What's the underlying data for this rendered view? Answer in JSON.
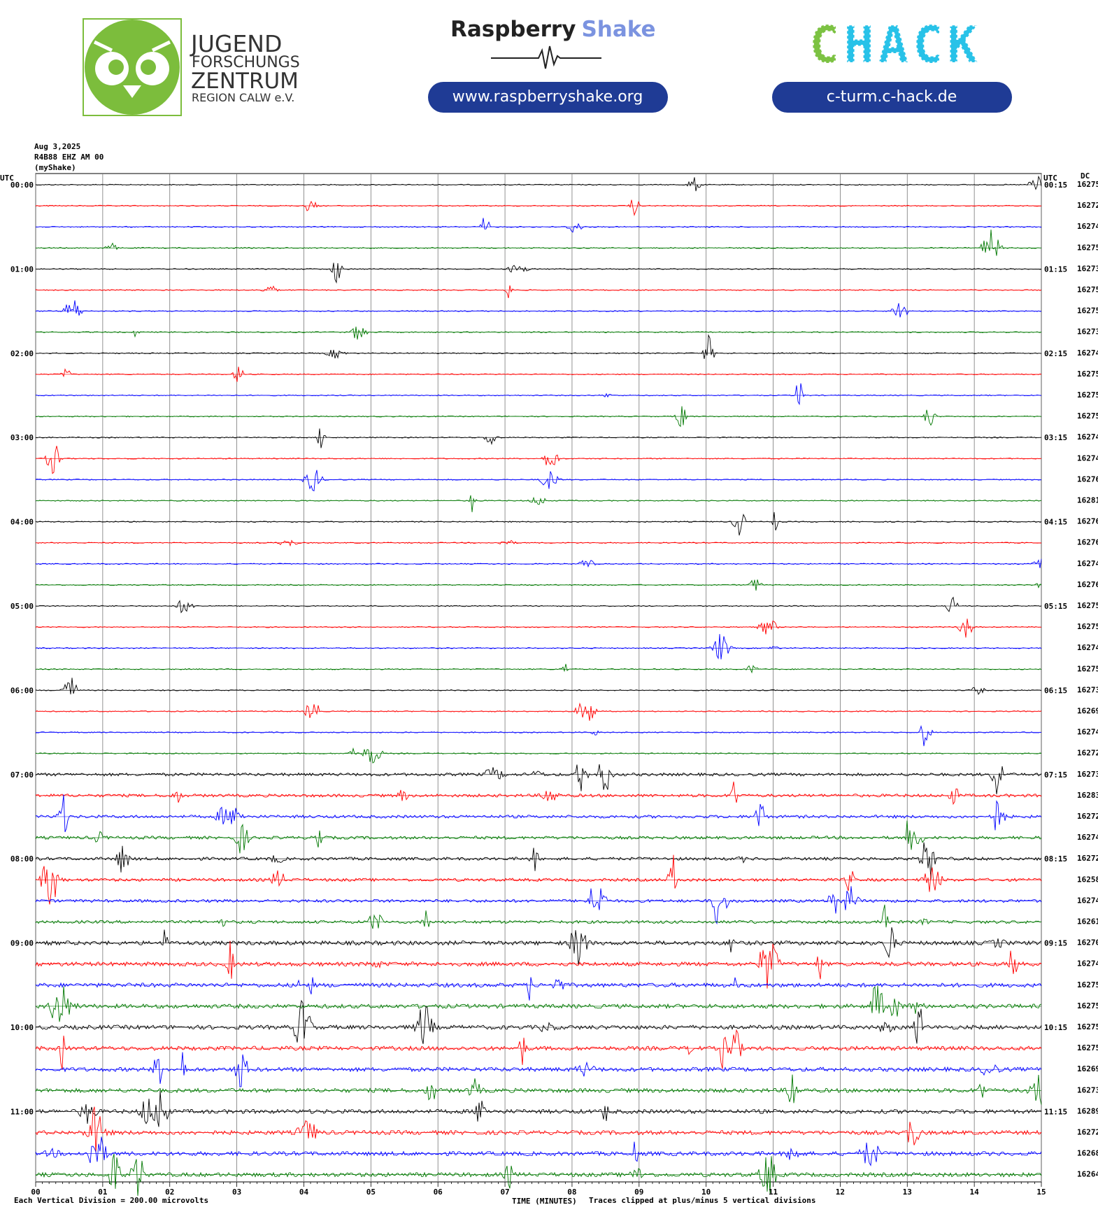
{
  "header": {
    "logo_lines": [
      "JUGEND",
      "FORSCHUNGS",
      "ZENTRUM",
      "REGION CALW e.V."
    ],
    "rs_brand": [
      "Raspberry",
      "Shake"
    ],
    "rs_url": "www.raspberryshake.org",
    "chack_logo": [
      "C",
      "HACK"
    ],
    "chack_url": "c-turm.c-hack.de"
  },
  "plot": {
    "date": "Aug 3,2025",
    "station": "R4B88 EHZ AM 00",
    "source": "(myShake)",
    "left_title": "UTC",
    "right_title": "UTC",
    "dc_title": "DC",
    "left_labels": [
      "00:00",
      "01:00",
      "02:00",
      "03:00",
      "04:00",
      "05:00",
      "06:00",
      "07:00",
      "08:00",
      "09:00",
      "10:00",
      "11:00"
    ],
    "right_labels": [
      "00:15",
      "01:15",
      "02:15",
      "03:15",
      "04:15",
      "05:15",
      "06:15",
      "07:15",
      "08:15",
      "09:15",
      "10:15",
      "11:15"
    ],
    "dc": [
      16275,
      16272,
      16274,
      16275,
      16273,
      16275,
      16275,
      16273,
      16274,
      16275,
      16275,
      16275,
      16274,
      16274,
      16276,
      16281,
      16276,
      16276,
      16274,
      16276,
      16275,
      16275,
      16274,
      16275,
      16273,
      16269,
      16274,
      16272,
      16273,
      16283,
      16272,
      16274,
      16272,
      16258,
      16274,
      16261,
      16270,
      16274,
      16275,
      16275,
      16275,
      16275,
      16269,
      16273,
      16289,
      16272,
      16268,
      16264
    ],
    "xlim": [
      0,
      15
    ],
    "xticks": [
      {
        "value": 0,
        "label": "00"
      },
      {
        "value": 1,
        "label": "01"
      },
      {
        "value": 2,
        "label": "02"
      },
      {
        "value": 3,
        "label": "03"
      },
      {
        "value": 4,
        "label": "04"
      },
      {
        "value": 5,
        "label": "05"
      },
      {
        "value": 6,
        "label": "06"
      },
      {
        "value": 7,
        "label": "07"
      },
      {
        "value": 8,
        "label": "08"
      },
      {
        "value": 9,
        "label": "09"
      },
      {
        "value": 10,
        "label": "10"
      },
      {
        "value": 11,
        "label": "11"
      },
      {
        "value": 12,
        "label": "12"
      },
      {
        "value": 13,
        "label": "13"
      },
      {
        "value": 14,
        "label": "14"
      },
      {
        "value": 15,
        "label": "15"
      }
    ],
    "x_label": "TIME (MINUTES)",
    "scale_note": "Each Vertical Division =  200.00 microvolts",
    "clip_note": "Traces clipped at plus/minus 5 vertical divisions",
    "trace_colors": [
      "#000000",
      "#ff0000",
      "#0000ff",
      "#007700"
    ]
  }
}
